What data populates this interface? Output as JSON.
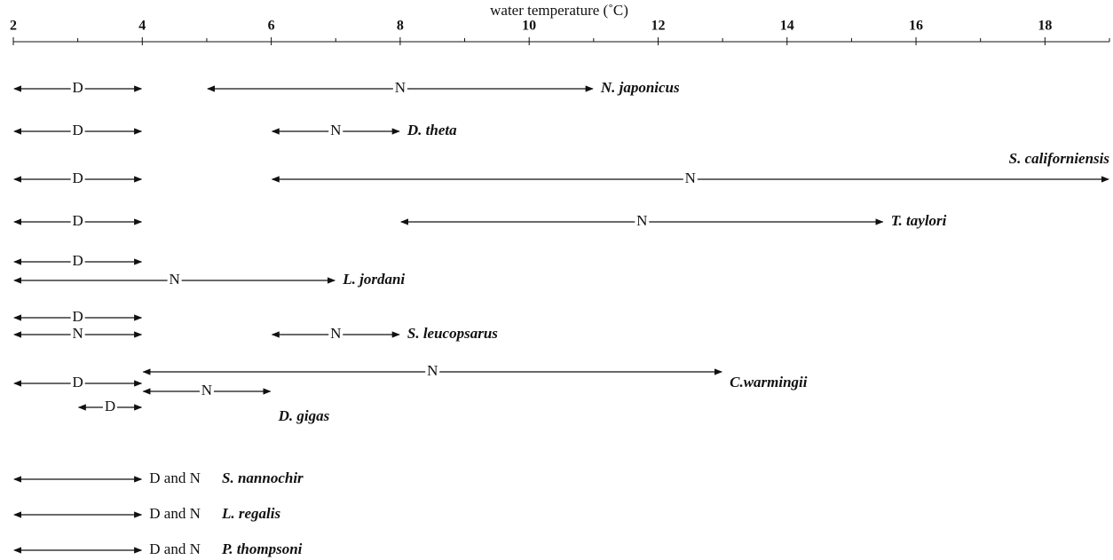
{
  "chart_data": {
    "type": "range",
    "xlabel": "water temperature (˚C)",
    "xlim": [
      2,
      19
    ],
    "xticks": [
      2,
      4,
      6,
      8,
      10,
      12,
      14,
      16,
      18
    ],
    "xminorticks": [
      3,
      5,
      7,
      9,
      11,
      13,
      15,
      17,
      19
    ],
    "species": [
      {
        "name": "N. japonicus",
        "ranges": [
          {
            "label": "D",
            "values": [
              2,
              4
            ]
          },
          {
            "label": "N",
            "values": [
              5,
              11
            ]
          }
        ]
      },
      {
        "name": "D. theta",
        "ranges": [
          {
            "label": "D",
            "values": [
              2,
              4
            ]
          },
          {
            "label": "N",
            "values": [
              6,
              8
            ]
          }
        ]
      },
      {
        "name": "S. californiensis",
        "ranges": [
          {
            "label": "D",
            "values": [
              2,
              4
            ]
          },
          {
            "label": "N",
            "values": [
              6,
              19
            ]
          }
        ]
      },
      {
        "name": "T. taylori",
        "ranges": [
          {
            "label": "D",
            "values": [
              2,
              4
            ]
          },
          {
            "label": "N",
            "values": [
              8,
              15.5
            ]
          }
        ]
      },
      {
        "name": "L. jordani",
        "ranges": [
          {
            "label": "D",
            "values": [
              2,
              4
            ]
          },
          {
            "label": "N",
            "values": [
              2,
              7
            ]
          }
        ]
      },
      {
        "name": "S. leucopsarus",
        "ranges": [
          {
            "label": "D",
            "values": [
              2,
              4
            ]
          },
          {
            "label": "N",
            "values": [
              2,
              4
            ]
          },
          {
            "label": "N",
            "values": [
              6,
              8
            ]
          }
        ]
      },
      {
        "name": "C.warmingii",
        "ranges": [
          {
            "label": "D",
            "values": [
              2,
              4
            ]
          },
          {
            "label": "N",
            "values": [
              4,
              13
            ]
          }
        ]
      },
      {
        "name": "D. gigas",
        "ranges": [
          {
            "label": "D",
            "values": [
              3,
              4
            ]
          },
          {
            "label": "N",
            "values": [
              4,
              6
            ]
          }
        ]
      },
      {
        "name": "S. nannochir",
        "ranges": [
          {
            "label": "D and N",
            "values": [
              2,
              4
            ]
          }
        ]
      },
      {
        "name": "L. regalis",
        "ranges": [
          {
            "label": "D and N",
            "values": [
              2,
              4
            ]
          }
        ]
      },
      {
        "name": "P. thompsoni",
        "ranges": [
          {
            "label": "D and N",
            "values": [
              2,
              4
            ]
          }
        ]
      }
    ]
  }
}
